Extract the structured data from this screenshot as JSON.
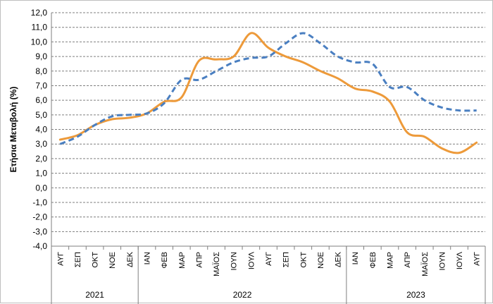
{
  "chart_data": {
    "type": "line",
    "title": "",
    "xlabel": "",
    "ylabel": "Ετήσια Μεταβολή (%)",
    "ylim": [
      -4.0,
      12.0
    ],
    "ystep": 1.0,
    "yticks": [
      "12,0",
      "11,0",
      "10,0",
      "9,0",
      "8,0",
      "7,0",
      "6,0",
      "5,0",
      "4,0",
      "3,0",
      "2,0",
      "1,0",
      "0,0",
      "-1,0",
      "-2,0",
      "-3,0",
      "-4,0"
    ],
    "grid": "horizontal dashed",
    "legend": "none",
    "categories": [
      "ΑΥΓ",
      "ΣΕΠ",
      "ΟΚΤ",
      "ΝΟΕ",
      "ΔΕΚ",
      "ΙΑΝ",
      "ΦΕΒ",
      "ΜΑΡ",
      "ΑΠΡ",
      "ΜΑΪΟΣ",
      "ΙΟΥΝ",
      "ΙΟΥΛ",
      "ΑΥΓ",
      "ΣΕΠ",
      "ΟΚΤ",
      "ΝΟΕ",
      "ΔΕΚ",
      "ΙΑΝ",
      "ΦΕΒ",
      "ΜΑΡ",
      "ΑΠΡ",
      "ΜΑΪΟΣ",
      "ΙΟΥΝ",
      "ΙΟΥΛ",
      "ΑΥΓ"
    ],
    "year_groups": [
      {
        "label": "2021",
        "start": 0,
        "end": 4
      },
      {
        "label": "2022",
        "start": 5,
        "end": 16
      },
      {
        "label": "2023",
        "start": 17,
        "end": 24
      }
    ],
    "series": [
      {
        "style": "solid",
        "color": "#ED9A3A",
        "values": [
          3.3,
          3.6,
          4.3,
          4.7,
          4.8,
          5.1,
          5.9,
          6.2,
          8.7,
          8.8,
          9.0,
          10.6,
          9.6,
          9.0,
          8.6,
          8.0,
          7.5,
          6.8,
          6.6,
          5.9,
          3.8,
          3.5,
          2.7,
          2.4,
          3.1
        ]
      },
      {
        "style": "dashed",
        "color": "#4A7FC1",
        "values": [
          3.0,
          3.5,
          4.3,
          4.9,
          5.0,
          5.1,
          5.8,
          7.4,
          7.4,
          8.0,
          8.6,
          8.9,
          9.0,
          9.9,
          10.6,
          9.9,
          9.0,
          8.6,
          8.5,
          6.9,
          6.9,
          6.0,
          5.5,
          5.3,
          5.3
        ]
      }
    ]
  }
}
